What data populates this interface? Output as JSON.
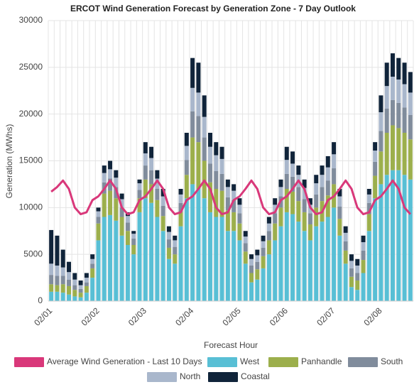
{
  "chart_data": {
    "type": "bar",
    "stacked": true,
    "title": "ERCOT Wind Generation Forecast by Generation Zone - 7 Day Outlook",
    "x_label": "Forecast Hour",
    "y_label": "Generation (MWhs)",
    "ylim": [
      0,
      30000
    ],
    "yticks": [
      0,
      5000,
      10000,
      15000,
      20000,
      25000,
      30000
    ],
    "grid": true,
    "categories": [
      "02/01",
      null,
      null,
      null,
      null,
      null,
      null,
      null,
      "02/02",
      null,
      null,
      null,
      null,
      null,
      null,
      null,
      "02/03",
      null,
      null,
      null,
      null,
      null,
      null,
      null,
      "02/04",
      null,
      null,
      null,
      null,
      null,
      null,
      null,
      "02/05",
      null,
      null,
      null,
      null,
      null,
      null,
      null,
      "02/06",
      null,
      null,
      null,
      null,
      null,
      null,
      null,
      "02/07",
      null,
      null,
      null,
      null,
      null,
      null,
      null,
      "02/08",
      null,
      null,
      null,
      null,
      null
    ],
    "series": [
      {
        "name": "Average Wind Generation - Last 10 Days",
        "type": "line",
        "color": "#d9387a",
        "values": [
          11700,
          12200,
          12900,
          12000,
          10000,
          9300,
          9500,
          10800,
          11200,
          12000,
          12900,
          12000,
          10000,
          9300,
          9500,
          10800,
          11200,
          12000,
          12900,
          12000,
          10000,
          9300,
          9500,
          10800,
          11200,
          12000,
          12900,
          12000,
          10000,
          9300,
          9500,
          10800,
          11200,
          12000,
          12900,
          12000,
          10000,
          9300,
          9500,
          10800,
          11200,
          12000,
          12900,
          12000,
          10000,
          9300,
          9500,
          10800,
          11200,
          12000,
          12900,
          12000,
          10000,
          9300,
          9500,
          10800,
          11200,
          12000,
          12900,
          12000,
          10000,
          9300
        ]
      },
      {
        "name": "West",
        "color": "#58bfd5",
        "values": [
          1000,
          1000,
          900,
          700,
          500,
          400,
          900,
          2500,
          6500,
          9000,
          9200,
          8600,
          7000,
          6000,
          5000,
          9500,
          11000,
          10500,
          9000,
          7500,
          4500,
          4000,
          8000,
          11000,
          12500,
          12000,
          11000,
          9500,
          9000,
          9000,
          7500,
          7500,
          6500,
          4000,
          2000,
          2300,
          3500,
          5000,
          6500,
          8000,
          9500,
          9300,
          8500,
          7500,
          6500,
          8000,
          8500,
          9000,
          10000,
          7000,
          4000,
          1500,
          1200,
          3000,
          7500,
          11000,
          12500,
          13500,
          14000,
          14000,
          13500,
          13000
        ]
      },
      {
        "name": "Panhandle",
        "color": "#9caf4c",
        "values": [
          800,
          700,
          900,
          900,
          700,
          500,
          700,
          1000,
          1800,
          2500,
          2600,
          2400,
          2000,
          1500,
          1000,
          1500,
          2000,
          2000,
          1800,
          1600,
          1200,
          1000,
          1500,
          2500,
          5000,
          5000,
          4000,
          3200,
          3000,
          2800,
          2200,
          2000,
          1800,
          1300,
          1000,
          1100,
          1300,
          1500,
          1800,
          2000,
          2500,
          2400,
          2200,
          2000,
          1700,
          2000,
          2200,
          2300,
          2500,
          1800,
          1400,
          1100,
          1000,
          1400,
          1800,
          2400,
          3500,
          4500,
          4800,
          4500,
          4500,
          4300
        ]
      },
      {
        "name": "South",
        "color": "#808c9c",
        "values": [
          1000,
          1000,
          900,
          700,
          500,
          400,
          400,
          500,
          700,
          1200,
          1300,
          1200,
          1000,
          900,
          700,
          900,
          1500,
          1500,
          1200,
          1100,
          900,
          800,
          1000,
          1600,
          2800,
          2800,
          2500,
          2000,
          1900,
          1800,
          1400,
          1300,
          1100,
          900,
          800,
          800,
          900,
          1000,
          1100,
          1200,
          1600,
          1600,
          1500,
          1400,
          1200,
          1400,
          1500,
          1600,
          1700,
          1300,
          1000,
          900,
          800,
          1000,
          1200,
          1500,
          2200,
          2600,
          2700,
          2700,
          2700,
          2600
        ]
      },
      {
        "name": "North",
        "color": "#a9b7cc",
        "values": [
          1200,
          1100,
          900,
          800,
          600,
          400,
          500,
          500,
          600,
          1000,
          1000,
          1000,
          900,
          700,
          500,
          700,
          1300,
          1300,
          1100,
          1000,
          800,
          700,
          900,
          1500,
          2500,
          2500,
          2200,
          1800,
          1700,
          1600,
          1100,
          1000,
          900,
          700,
          700,
          700,
          700,
          800,
          900,
          1000,
          1500,
          1400,
          1300,
          1200,
          900,
          1200,
          1300,
          1400,
          1500,
          1100,
          900,
          800,
          800,
          900,
          900,
          1200,
          2000,
          2400,
          2500,
          2500,
          2500,
          2400
        ]
      },
      {
        "name": "Coastal",
        "color": "#10243a",
        "values": [
          3600,
          3200,
          1900,
          1100,
          700,
          500,
          500,
          500,
          400,
          800,
          900,
          800,
          600,
          400,
          300,
          400,
          1200,
          1200,
          900,
          800,
          600,
          500,
          600,
          1400,
          3200,
          3200,
          2300,
          1500,
          1400,
          1300,
          800,
          700,
          700,
          600,
          500,
          600,
          600,
          700,
          700,
          800,
          1400,
          1300,
          1000,
          900,
          700,
          900,
          1000,
          1200,
          1300,
          800,
          700,
          700,
          700,
          700,
          600,
          900,
          1800,
          2500,
          2500,
          2300,
          2300,
          2200
        ]
      }
    ]
  }
}
